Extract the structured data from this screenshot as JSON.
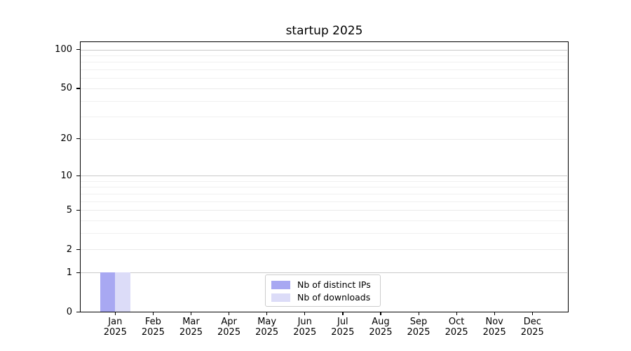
{
  "chart_data": {
    "type": "bar",
    "title": "startup 2025",
    "categories": [
      "Jan 2025",
      "Feb 2025",
      "Mar 2025",
      "Apr 2025",
      "May 2025",
      "Jun 2025",
      "Jul 2025",
      "Aug 2025",
      "Sep 2025",
      "Oct 2025",
      "Nov 2025",
      "Dec 2025"
    ],
    "x_tick_months": [
      "Jan",
      "Feb",
      "Mar",
      "Apr",
      "May",
      "Jun",
      "Jul",
      "Aug",
      "Sep",
      "Oct",
      "Nov",
      "Dec"
    ],
    "x_tick_year": "2025",
    "series": [
      {
        "name": "Nb of distinct IPs",
        "color": "#a8a8f2",
        "values": [
          1,
          0,
          0,
          0,
          0,
          0,
          0,
          0,
          0,
          0,
          0,
          0
        ]
      },
      {
        "name": "Nb of downloads",
        "color": "#dcdcf8",
        "values": [
          1,
          0,
          0,
          0,
          0,
          0,
          0,
          0,
          0,
          0,
          0,
          0
        ]
      }
    ],
    "xlabel": "",
    "ylabel": "",
    "yscale": "log1p",
    "ylim": [
      0,
      115
    ],
    "y_major_ticks": [
      0,
      1,
      2,
      5,
      10,
      20,
      50,
      100
    ],
    "y_decade_gridlines": [
      1,
      10,
      100
    ],
    "y_intermediate_gridlines": [
      2,
      5,
      20,
      50
    ],
    "y_minor_gridlines": [
      3,
      4,
      6,
      7,
      8,
      9,
      30,
      40,
      60,
      70,
      80,
      90
    ],
    "grid": "horizontal",
    "legend_position": "lower center",
    "colors": {
      "decade_grid": "#c9c9c9",
      "intermediate_grid": "#eaeaea",
      "minor_grid": "#f0f0f0",
      "axis": "#000000",
      "legend_border": "#cccccc",
      "background": "#ffffff"
    }
  }
}
